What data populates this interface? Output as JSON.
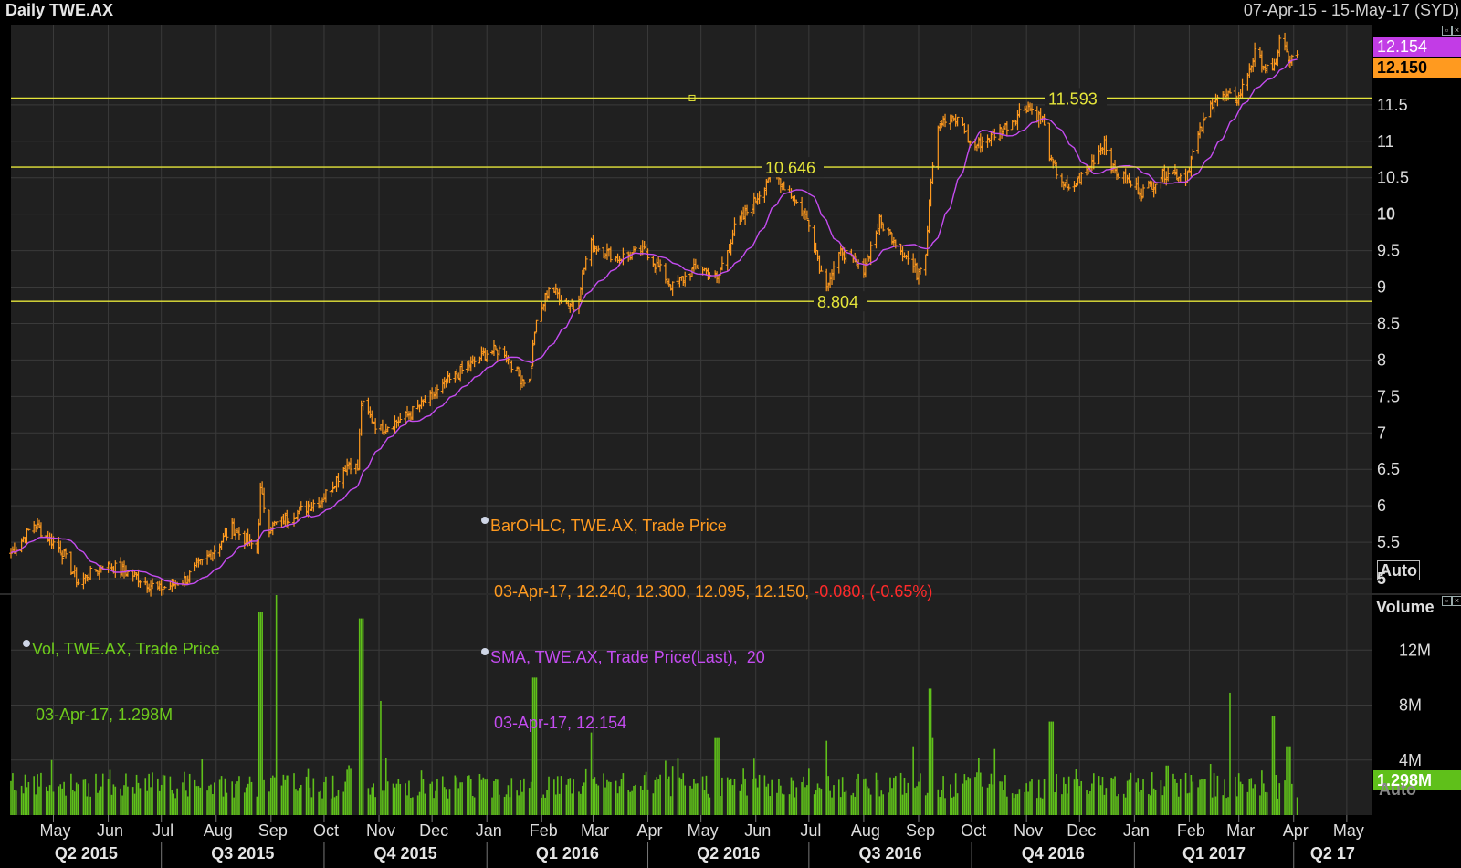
{
  "header": {
    "title": "Daily TWE.AX",
    "date_range": "07-Apr-15 - 15-May-17 (SYD)"
  },
  "legend": {
    "ohlc_name": "BarOHLC, TWE.AX, Trade Price",
    "ohlc_values": "03-Apr-17, 12.240, 12.300, 12.095, 12.150,",
    "ohlc_change": "-0.080, (-0.65%)",
    "sma_name": "SMA, TWE.AX, Trade Price(Last),  20",
    "sma_values": "03-Apr-17, 12.154",
    "vol_name": "Vol, TWE.AX, Trade Price",
    "vol_values": "03-Apr-17, 1.298M"
  },
  "price_tags": {
    "sma_last": "12.154",
    "close_last": "12.150",
    "volume_last": "1.298M"
  },
  "axis_buttons": {
    "auto_price": "Auto",
    "auto_volume": "Auto",
    "volume_title": "Volume"
  },
  "colors": {
    "background": "#202020",
    "bars": "#ff9a1f",
    "sma": "#c44cf0",
    "hlines": "#e5e53a",
    "volume": "#5fc01a",
    "grid": "#3a3a3a"
  },
  "chart_data": [
    {
      "type": "ohlc",
      "series": [
        {
          "name": "BarOHLC, TWE.AX, Trade Price",
          "kind": "ohlc-bars"
        },
        {
          "name": "SMA, TWE.AX, Trade Price(Last),  20",
          "kind": "line"
        }
      ],
      "ylim": [
        4.8,
        12.6
      ],
      "y_ticks": [
        "5",
        "5.5",
        "6",
        "6.5",
        "7",
        "7.5",
        "8",
        "8.5",
        "9",
        "9.5",
        "10",
        "10.5",
        "11",
        "11.5"
      ],
      "y_tick_values": [
        5,
        5.5,
        6,
        6.5,
        7,
        7.5,
        8,
        8.5,
        9,
        9.5,
        10,
        10.5,
        11,
        11.5
      ],
      "bold_ticks": [
        "5",
        "10"
      ],
      "horizontal_lines": [
        {
          "value": 11.593,
          "label": "11.593"
        },
        {
          "value": 10.646,
          "label": "10.646"
        },
        {
          "value": 8.804,
          "label": "8.804"
        }
      ],
      "price_path": [
        [
          "2015-04-07",
          5.35
        ],
        [
          "2015-04-20",
          5.75
        ],
        [
          "2015-05-05",
          5.4
        ],
        [
          "2015-05-15",
          4.95
        ],
        [
          "2015-05-30",
          5.2
        ],
        [
          "2015-06-15",
          5.05
        ],
        [
          "2015-06-30",
          4.85
        ],
        [
          "2015-07-15",
          5.0
        ],
        [
          "2015-07-31",
          5.4
        ],
        [
          "2015-08-10",
          5.7
        ],
        [
          "2015-08-24",
          5.4
        ],
        [
          "2015-08-26",
          6.2
        ],
        [
          "2015-08-31",
          5.7
        ],
        [
          "2015-09-15",
          5.9
        ],
        [
          "2015-09-30",
          6.1
        ],
        [
          "2015-10-15",
          6.6
        ],
        [
          "2015-10-20",
          6.5
        ],
        [
          "2015-10-22",
          7.4
        ],
        [
          "2015-11-01",
          7.05
        ],
        [
          "2015-11-15",
          7.2
        ],
        [
          "2015-12-01",
          7.5
        ],
        [
          "2015-12-15",
          7.8
        ],
        [
          "2016-01-01",
          8.1
        ],
        [
          "2016-01-10",
          8.15
        ],
        [
          "2016-01-20",
          7.75
        ],
        [
          "2016-01-25",
          7.7
        ],
        [
          "2016-01-28",
          8.4
        ],
        [
          "2016-02-05",
          9.0
        ],
        [
          "2016-02-20",
          8.7
        ],
        [
          "2016-02-28",
          9.6
        ],
        [
          "2016-03-15",
          9.4
        ],
        [
          "2016-03-31",
          9.5
        ],
        [
          "2016-04-15",
          9.0
        ],
        [
          "2016-04-30",
          9.3
        ],
        [
          "2016-05-10",
          9.1
        ],
        [
          "2016-05-20",
          9.8
        ],
        [
          "2016-06-01",
          10.2
        ],
        [
          "2016-06-10",
          10.6
        ],
        [
          "2016-06-20",
          10.3
        ],
        [
          "2016-07-01",
          9.9
        ],
        [
          "2016-07-10",
          9.0
        ],
        [
          "2016-07-20",
          9.5
        ],
        [
          "2016-07-31",
          9.2
        ],
        [
          "2016-08-10",
          9.9
        ],
        [
          "2016-08-20",
          9.6
        ],
        [
          "2016-08-31",
          9.2
        ],
        [
          "2016-09-05",
          9.5
        ],
        [
          "2016-09-08",
          10.5
        ],
        [
          "2016-09-12",
          11.25
        ],
        [
          "2016-09-25",
          11.3
        ],
        [
          "2016-10-01",
          10.9
        ],
        [
          "2016-10-20",
          11.2
        ],
        [
          "2016-11-01",
          11.5
        ],
        [
          "2016-11-10",
          11.3
        ],
        [
          "2016-11-15",
          10.7
        ],
        [
          "2016-11-25",
          10.3
        ],
        [
          "2016-12-05",
          10.6
        ],
        [
          "2016-12-15",
          11.0
        ],
        [
          "2016-12-20",
          10.6
        ],
        [
          "2017-01-05",
          10.3
        ],
        [
          "2017-01-20",
          10.6
        ],
        [
          "2017-01-30",
          10.5
        ],
        [
          "2017-02-05",
          11.0
        ],
        [
          "2017-02-15",
          11.6
        ],
        [
          "2017-03-01",
          11.6
        ],
        [
          "2017-03-10",
          12.2
        ],
        [
          "2017-03-20",
          11.9
        ],
        [
          "2017-03-25",
          12.5
        ],
        [
          "2017-03-29",
          12.1
        ],
        [
          "2017-04-03",
          12.15
        ]
      ],
      "sma_last": 12.154,
      "last_bar": {
        "date": "03-Apr-17",
        "open": 12.24,
        "high": 12.3,
        "low": 12.095,
        "close": 12.15,
        "change": -0.08,
        "change_pct": -0.65
      }
    },
    {
      "type": "bar",
      "series": [
        {
          "name": "Vol, TWE.AX, Trade Price"
        }
      ],
      "ylim": [
        0,
        16000000
      ],
      "y_ticks": [
        "4M",
        "8M",
        "12M"
      ],
      "y_tick_values": [
        4000000,
        8000000,
        12000000
      ],
      "notable_spikes": [
        [
          "2015-08-26",
          14800000
        ],
        [
          "2015-09-05",
          17500000
        ],
        [
          "2015-10-22",
          14300000
        ],
        [
          "2015-11-01",
          8300000
        ],
        [
          "2016-01-28",
          10000000
        ],
        [
          "2016-02-28",
          6000000
        ],
        [
          "2016-05-10",
          5600000
        ],
        [
          "2016-07-10",
          5400000
        ],
        [
          "2016-08-28",
          5000000
        ],
        [
          "2016-09-08",
          9200000
        ],
        [
          "2016-09-10",
          5600000
        ],
        [
          "2016-10-15",
          4800000
        ],
        [
          "2016-11-15",
          6800000
        ],
        [
          "2017-01-20",
          3600000
        ],
        [
          "2017-02-25",
          8900000
        ],
        [
          "2017-03-20",
          7200000
        ],
        [
          "2017-03-29",
          5000000
        ]
      ],
      "last_value": 1298000
    }
  ],
  "time_axis": {
    "start": "2015-04-07",
    "end": "2017-05-15",
    "months": [
      {
        "label": "May",
        "date": "2015-05-01"
      },
      {
        "label": "Jun",
        "date": "2015-06-01"
      },
      {
        "label": "Jul",
        "date": "2015-07-01"
      },
      {
        "label": "Aug",
        "date": "2015-08-01"
      },
      {
        "label": "Sep",
        "date": "2015-09-01"
      },
      {
        "label": "Oct",
        "date": "2015-10-01"
      },
      {
        "label": "Nov",
        "date": "2015-11-01"
      },
      {
        "label": "Dec",
        "date": "2015-12-01"
      },
      {
        "label": "Jan",
        "date": "2016-01-01"
      },
      {
        "label": "Feb",
        "date": "2016-02-01"
      },
      {
        "label": "Mar",
        "date": "2016-03-01"
      },
      {
        "label": "Apr",
        "date": "2016-04-01"
      },
      {
        "label": "May",
        "date": "2016-05-01"
      },
      {
        "label": "Jun",
        "date": "2016-06-01"
      },
      {
        "label": "Jul",
        "date": "2016-07-01"
      },
      {
        "label": "Aug",
        "date": "2016-08-01"
      },
      {
        "label": "Sep",
        "date": "2016-09-01"
      },
      {
        "label": "Oct",
        "date": "2016-10-01"
      },
      {
        "label": "Nov",
        "date": "2016-11-01"
      },
      {
        "label": "Dec",
        "date": "2016-12-01"
      },
      {
        "label": "Jan",
        "date": "2017-01-01"
      },
      {
        "label": "Feb",
        "date": "2017-02-01"
      },
      {
        "label": "Mar",
        "date": "2017-03-01"
      },
      {
        "label": "Apr",
        "date": "2017-04-01"
      },
      {
        "label": "May",
        "date": "2017-05-01"
      }
    ],
    "quarters": [
      {
        "label": "Q2 2015",
        "start": "2015-04-07",
        "end": "2015-07-01"
      },
      {
        "label": "Q3 2015",
        "start": "2015-07-01",
        "end": "2015-10-01"
      },
      {
        "label": "Q4 2015",
        "start": "2015-10-01",
        "end": "2016-01-01"
      },
      {
        "label": "Q1 2016",
        "start": "2016-01-01",
        "end": "2016-04-01"
      },
      {
        "label": "Q2 2016",
        "start": "2016-04-01",
        "end": "2016-07-01"
      },
      {
        "label": "Q3 2016",
        "start": "2016-07-01",
        "end": "2016-10-01"
      },
      {
        "label": "Q4 2016",
        "start": "2016-10-01",
        "end": "2017-01-01"
      },
      {
        "label": "Q1 2017",
        "start": "2017-01-01",
        "end": "2017-04-01"
      },
      {
        "label": "Q2 17",
        "start": "2017-04-01",
        "end": "2017-05-15"
      }
    ]
  }
}
